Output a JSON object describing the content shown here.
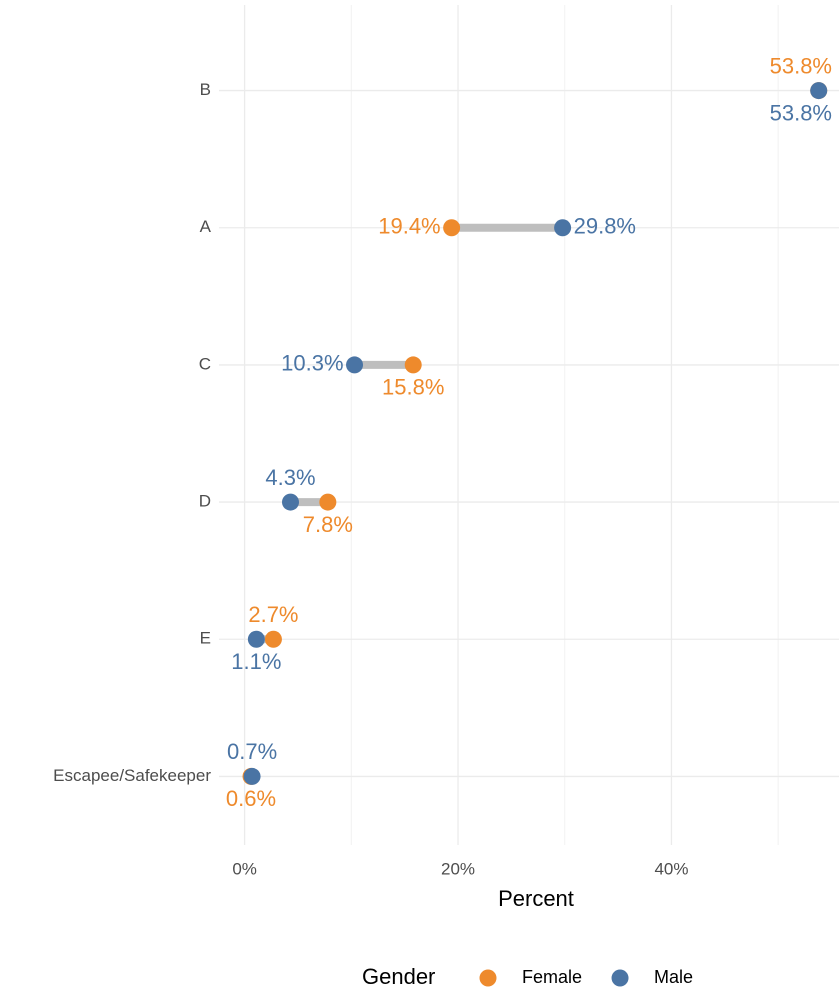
{
  "chart_data": {
    "type": "dumbbell",
    "categories": [
      "B",
      "A",
      "C",
      "D",
      "E",
      "Escapee/Safekeeper"
    ],
    "series": [
      {
        "name": "Female",
        "color": "#ee8a2c",
        "values": [
          53.8,
          19.4,
          15.8,
          7.8,
          2.7,
          0.6
        ],
        "value_labels": [
          "53.8%",
          "19.4%",
          "15.8%",
          "7.8%",
          "2.7%",
          "0.6%"
        ]
      },
      {
        "name": "Male",
        "color": "#4a74a4",
        "values": [
          53.8,
          29.8,
          10.3,
          4.3,
          1.1,
          0.7
        ],
        "value_labels": [
          "53.8%",
          "29.8%",
          "10.3%",
          "4.3%",
          "1.1%",
          "0.7%"
        ]
      }
    ],
    "xlabel": "Percent",
    "legend_title": "Gender",
    "legend_position": "bottom",
    "xlim": [
      -2.4,
      55.7
    ],
    "xticks": [
      {
        "value": 0,
        "label": "0%"
      },
      {
        "value": 20,
        "label": "20%"
      },
      {
        "value": 40,
        "label": "40%"
      }
    ],
    "xminor": [
      10,
      30,
      50
    ],
    "grid": true,
    "segment_color": "#bebebe"
  }
}
